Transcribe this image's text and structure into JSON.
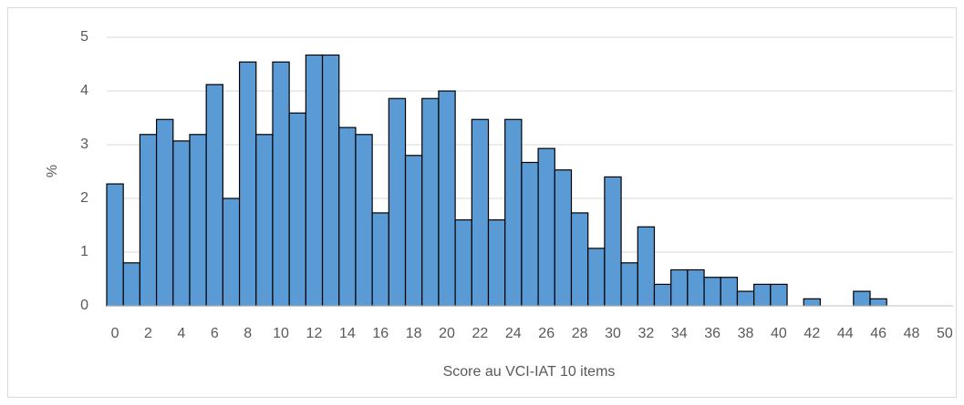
{
  "chart_data": {
    "type": "bar",
    "x_label": "Score au VCI-IAT 10 items",
    "y_label": "%",
    "categories": [
      "0",
      null,
      "2",
      null,
      "4",
      null,
      "6",
      null,
      "8",
      null,
      "10",
      null,
      "12",
      null,
      "14",
      null,
      "16",
      null,
      "18",
      null,
      "20",
      null,
      "22",
      null,
      "24",
      null,
      "26",
      null,
      "28",
      null,
      "30",
      null,
      "32",
      null,
      "34",
      null,
      "36",
      null,
      "38",
      null,
      "40",
      null,
      "42",
      null,
      "44",
      null,
      "46",
      null,
      "48",
      null,
      "50"
    ],
    "values": [
      2.27,
      0.8,
      3.19,
      3.47,
      3.07,
      3.19,
      4.12,
      2.0,
      4.54,
      3.19,
      4.54,
      3.59,
      4.67,
      4.67,
      3.32,
      3.19,
      1.73,
      3.86,
      2.8,
      3.86,
      4.0,
      1.6,
      3.47,
      1.6,
      3.47,
      2.67,
      2.93,
      2.53,
      1.73,
      1.07,
      2.4,
      0.8,
      1.47,
      0.4,
      0.67,
      0.67,
      0.53,
      0.53,
      0.27,
      0.4,
      0.4,
      0,
      0.13,
      0,
      0,
      0.27,
      0.13,
      0,
      0,
      0,
      0
    ],
    "color": "#5b9bd5",
    "ylim": [
      0,
      5
    ],
    "yticks": [
      0,
      1,
      2,
      3,
      4,
      5
    ],
    "grid": true
  }
}
